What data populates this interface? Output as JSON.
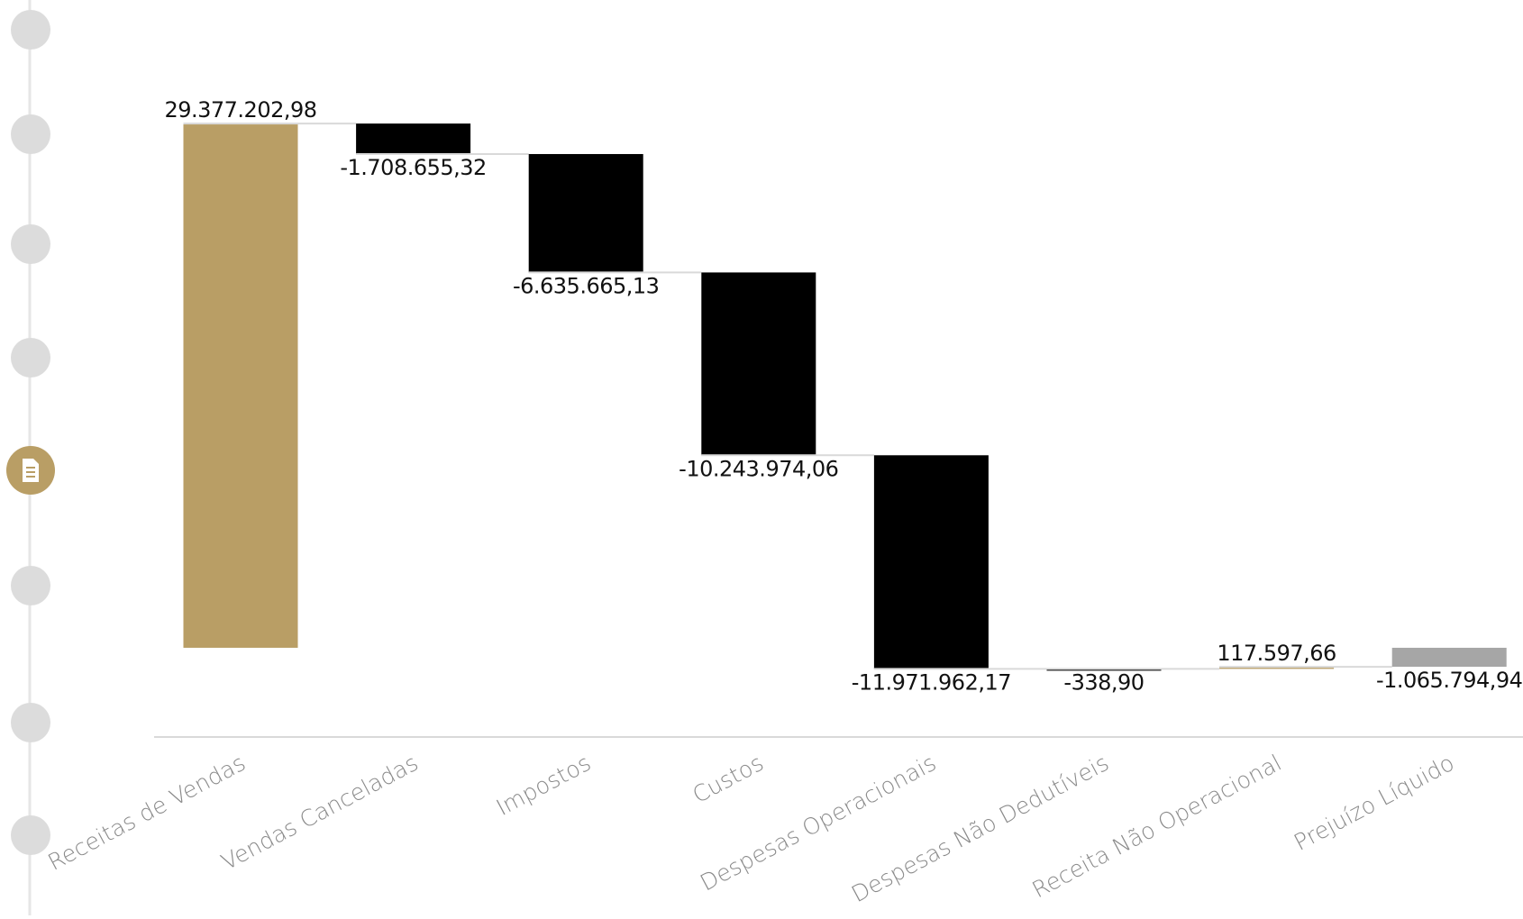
{
  "chart_data": {
    "type": "waterfall",
    "categories": [
      "Receitas de Vendas",
      "Vendas Canceladas",
      "Impostos",
      "Custos",
      "Despesas Operacionais",
      "Despesas Não Dedutíveis",
      "Receita Não Operacional",
      "Prejuízo Líquido"
    ],
    "values": [
      29377202.98,
      -1708655.32,
      -6635665.13,
      -10243974.06,
      -11971962.17,
      -338.9,
      117597.66,
      -1065794.94
    ],
    "value_labels": [
      "29.377.202,98",
      "-1.708.655,32",
      "-6.635.665,13",
      "-10.243.974,06",
      "-11.971.962,17",
      "-338,90",
      "117.597,66",
      "-1.065.794,94"
    ],
    "colors": {
      "increase": "#b99e65",
      "decrease": "#000000",
      "total": "#a6a6a6"
    },
    "last_is_total": true,
    "ylim": [
      -5000000,
      31000000
    ]
  }
}
